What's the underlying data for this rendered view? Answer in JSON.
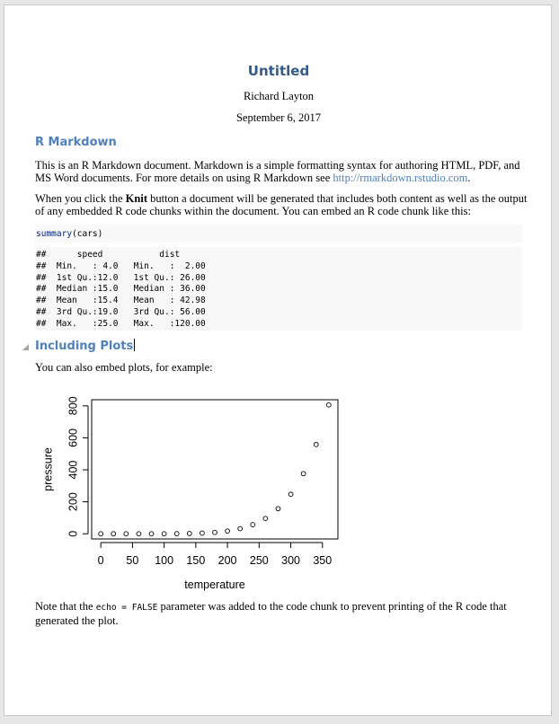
{
  "doc": {
    "title": "Untitled",
    "author": "Richard Layton",
    "date": "September 6, 2017"
  },
  "section1": {
    "heading": "R Markdown",
    "p1_text": "This is an R Markdown document. Markdown is a simple formatting syntax for authoring HTML, PDF, and MS Word documents. For more details on using R Markdown see ",
    "p1_link": "http://rmarkdown.rstudio.com",
    "p1_end": ".",
    "p2_before": "When you click the ",
    "p2_bold": "Knit",
    "p2_after": " button a document will be generated that includes both content as well as the output of any embedded R code chunks within the document. You can embed an R code chunk like this:",
    "code_fn": "summary",
    "code_arg": "(cars)",
    "output_lines": [
      "##      speed           dist       ",
      "##  Min.   : 4.0   Min.   :  2.00  ",
      "##  1st Qu.:12.0   1st Qu.: 26.00  ",
      "##  Median :15.0   Median : 36.00  ",
      "##  Mean   :15.4   Mean   : 42.98  ",
      "##  3rd Qu.:19.0   3rd Qu.: 56.00  ",
      "##  Max.   :25.0   Max.   :120.00  "
    ]
  },
  "section2": {
    "heading": "Including Plots",
    "intro": "You can also embed plots, for example:",
    "note_before": "Note that the ",
    "note_code": "echo = FALSE",
    "note_after": " parameter was added to the code chunk to prevent printing of the R code that generated the plot."
  },
  "chart_data": {
    "type": "scatter",
    "xlabel": "temperature",
    "ylabel": "pressure",
    "x": [
      0,
      20,
      40,
      60,
      80,
      100,
      120,
      140,
      160,
      180,
      200,
      220,
      240,
      260,
      280,
      300,
      320,
      340,
      360
    ],
    "y": [
      0.0002,
      0.0012,
      0.006,
      0.03,
      0.09,
      0.27,
      0.75,
      1.85,
      4.2,
      8.8,
      17.3,
      32.1,
      57,
      96,
      157,
      247,
      376,
      558,
      806
    ],
    "xticks": [
      0,
      50,
      100,
      150,
      200,
      250,
      300,
      350
    ],
    "yticks": [
      0,
      200,
      400,
      600,
      800
    ],
    "xlim": [
      -14.4,
      374.4
    ],
    "ylim": [
      -32.24,
      838.24
    ],
    "grid": false,
    "marker": "open-circle"
  }
}
